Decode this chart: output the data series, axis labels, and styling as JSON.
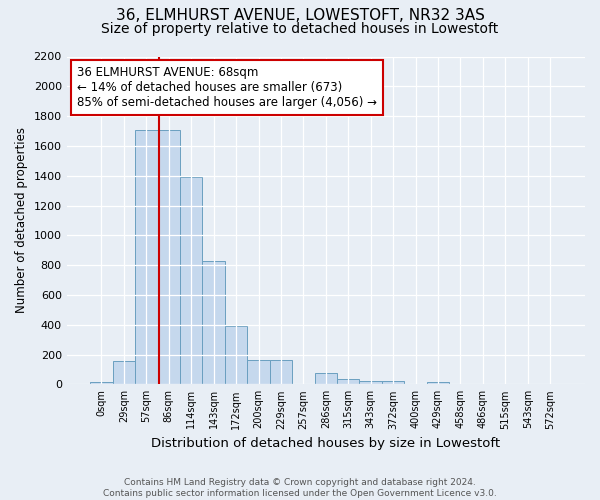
{
  "title": "36, ELMHURST AVENUE, LOWESTOFT, NR32 3AS",
  "subtitle": "Size of property relative to detached houses in Lowestoft",
  "xlabel": "Distribution of detached houses by size in Lowestoft",
  "ylabel": "Number of detached properties",
  "footer_line1": "Contains HM Land Registry data © Crown copyright and database right 2024.",
  "footer_line2": "Contains public sector information licensed under the Open Government Licence v3.0.",
  "categories": [
    "0sqm",
    "29sqm",
    "57sqm",
    "86sqm",
    "114sqm",
    "143sqm",
    "172sqm",
    "200sqm",
    "229sqm",
    "257sqm",
    "286sqm",
    "315sqm",
    "343sqm",
    "372sqm",
    "400sqm",
    "429sqm",
    "458sqm",
    "486sqm",
    "515sqm",
    "543sqm",
    "572sqm"
  ],
  "values": [
    15,
    155,
    1710,
    1710,
    1390,
    830,
    390,
    160,
    160,
    0,
    75,
    35,
    20,
    25,
    0,
    15,
    0,
    0,
    0,
    0,
    0
  ],
  "ylim": [
    0,
    2200
  ],
  "yticks": [
    0,
    200,
    400,
    600,
    800,
    1000,
    1200,
    1400,
    1600,
    1800,
    2000,
    2200
  ],
  "bar_color": "#c5d8ed",
  "bar_edge_color": "#6a9fc0",
  "property_line_index": 2.55,
  "annotation_text_line1": "36 ELMHURST AVENUE: 68sqm",
  "annotation_text_line2": "← 14% of detached houses are smaller (673)",
  "annotation_text_line3": "85% of semi-detached houses are larger (4,056) →",
  "annotation_box_facecolor": "#ffffff",
  "annotation_box_edgecolor": "#cc0000",
  "property_line_color": "#cc0000",
  "bg_color": "#e8eef5",
  "title_fontsize": 11,
  "subtitle_fontsize": 10
}
